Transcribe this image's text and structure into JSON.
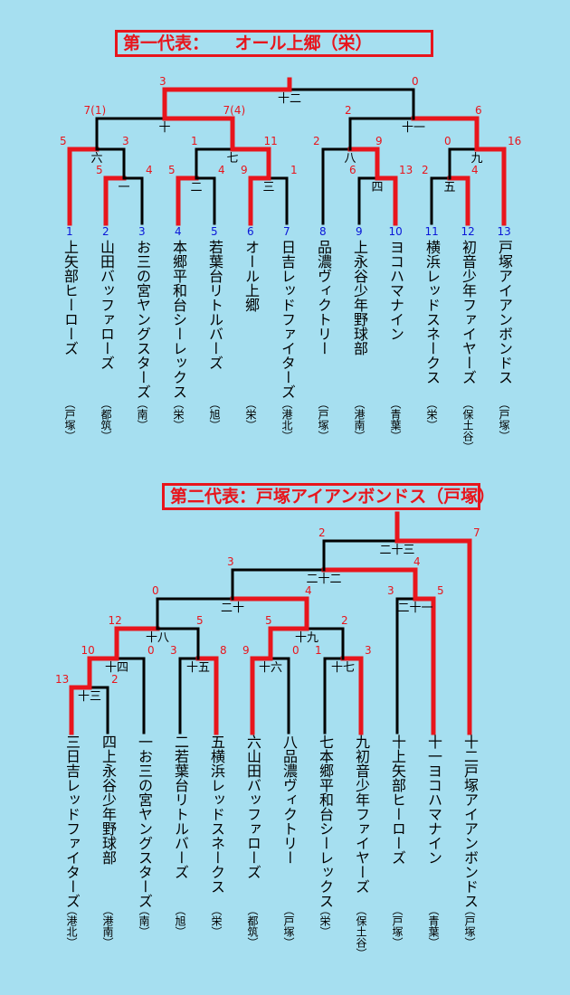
{
  "bracket1": {
    "title": "第一代表：　　オール上郷（栄）",
    "teams": [
      {
        "seed": "1",
        "name": "上矢部ヒーローズ",
        "area": "（戸塚）"
      },
      {
        "seed": "2",
        "name": "山田バッファローズ",
        "area": "（都筑）"
      },
      {
        "seed": "3",
        "name": "お三の宮ヤングスターズ",
        "area": "（南）"
      },
      {
        "seed": "4",
        "name": "本郷平和台シーレックス",
        "area": "（栄）"
      },
      {
        "seed": "5",
        "name": "若葉台リトルバーズ",
        "area": "（旭）"
      },
      {
        "seed": "6",
        "name": "オール上郷",
        "area": "（栄）"
      },
      {
        "seed": "7",
        "name": "日吉レッドファイターズ",
        "area": "（港北）"
      },
      {
        "seed": "8",
        "name": "品濃ヴィクトリー",
        "area": "（戸塚）"
      },
      {
        "seed": "9",
        "name": "上永谷少年野球部",
        "area": "（港南）"
      },
      {
        "seed": "10",
        "name": "ヨコハマナイン",
        "area": "（青葉）"
      },
      {
        "seed": "11",
        "name": "横浜レッドスネークス",
        "area": "（栄）"
      },
      {
        "seed": "12",
        "name": "初音少年ファイヤーズ",
        "area": "（保土谷）"
      },
      {
        "seed": "13",
        "name": "戸塚アイアンボンドス",
        "area": "（戸塚）"
      }
    ],
    "matches": [
      {
        "label": "一",
        "left": "5",
        "right": "4"
      },
      {
        "label": "二",
        "left": "5",
        "right": "4"
      },
      {
        "label": "三",
        "left": "9",
        "right": "1"
      },
      {
        "label": "四",
        "left": "6",
        "right": "13"
      },
      {
        "label": "五",
        "left": "2",
        "right": "4"
      },
      {
        "label": "六",
        "left": "5",
        "right": "3"
      },
      {
        "label": "七",
        "left": "1",
        "right": "11"
      },
      {
        "label": "八",
        "left": "2",
        "right": "9"
      },
      {
        "label": "九",
        "left": "0",
        "right": "16"
      },
      {
        "label": "十",
        "left": "7(1)",
        "right": "7(4)"
      },
      {
        "label": "十一",
        "left": "2",
        "right": "6"
      },
      {
        "label": "十二",
        "left": "3",
        "right": "0"
      }
    ]
  },
  "bracket2": {
    "title": "第二代表：戸塚アイアンボンドス（戸塚）",
    "teams": [
      {
        "seed": "三",
        "name": "日吉レッドファイターズ",
        "area": "（港北）"
      },
      {
        "seed": "四",
        "name": "上永谷少年野球部",
        "area": "（港南）"
      },
      {
        "seed": "一",
        "name": "お三の宮ヤングスターズ",
        "area": "（南）"
      },
      {
        "seed": "二",
        "name": "若葉台リトルバーズ",
        "area": "（旭）"
      },
      {
        "seed": "五",
        "name": "横浜レッドスネークス",
        "area": "（栄）"
      },
      {
        "seed": "六",
        "name": "山田バッファローズ",
        "area": "（都筑）"
      },
      {
        "seed": "八",
        "name": "品濃ヴィクトリー",
        "area": "（戸塚）"
      },
      {
        "seed": "七",
        "name": "本郷平和台シーレックス",
        "area": "（栄）"
      },
      {
        "seed": "九",
        "name": "初音少年ファイヤーズ",
        "area": "（保土谷）"
      },
      {
        "seed": "十",
        "name": "上矢部ヒーローズ",
        "area": "（戸塚）"
      },
      {
        "seed": "十一",
        "name": "ヨコハマナイン",
        "area": "（青葉）"
      },
      {
        "seed": "十二",
        "name": "戸塚アイアンボンドス",
        "area": "（戸塚）"
      }
    ],
    "matches": [
      {
        "label": "十三",
        "left": "13",
        "right": "2"
      },
      {
        "label": "十四",
        "left": "10",
        "right": "0"
      },
      {
        "label": "十五",
        "left": "3",
        "right": "8"
      },
      {
        "label": "十六",
        "left": "9",
        "right": "0"
      },
      {
        "label": "十七",
        "left": "1",
        "right": "3"
      },
      {
        "label": "十八",
        "left": "12",
        "right": "5"
      },
      {
        "label": "十九",
        "left": "5",
        "right": "2"
      },
      {
        "label": "二十",
        "left": "0",
        "right": "4"
      },
      {
        "label": "二十一",
        "left": "3",
        "right": "5"
      },
      {
        "label": "二十二",
        "left": "3",
        "right": "4"
      },
      {
        "label": "二十三",
        "left": "2",
        "right": "7"
      }
    ]
  },
  "colors": {
    "win": "#e8151c",
    "lose": "#000000",
    "seed": "#0a17d8",
    "background": "#a6dff0"
  }
}
